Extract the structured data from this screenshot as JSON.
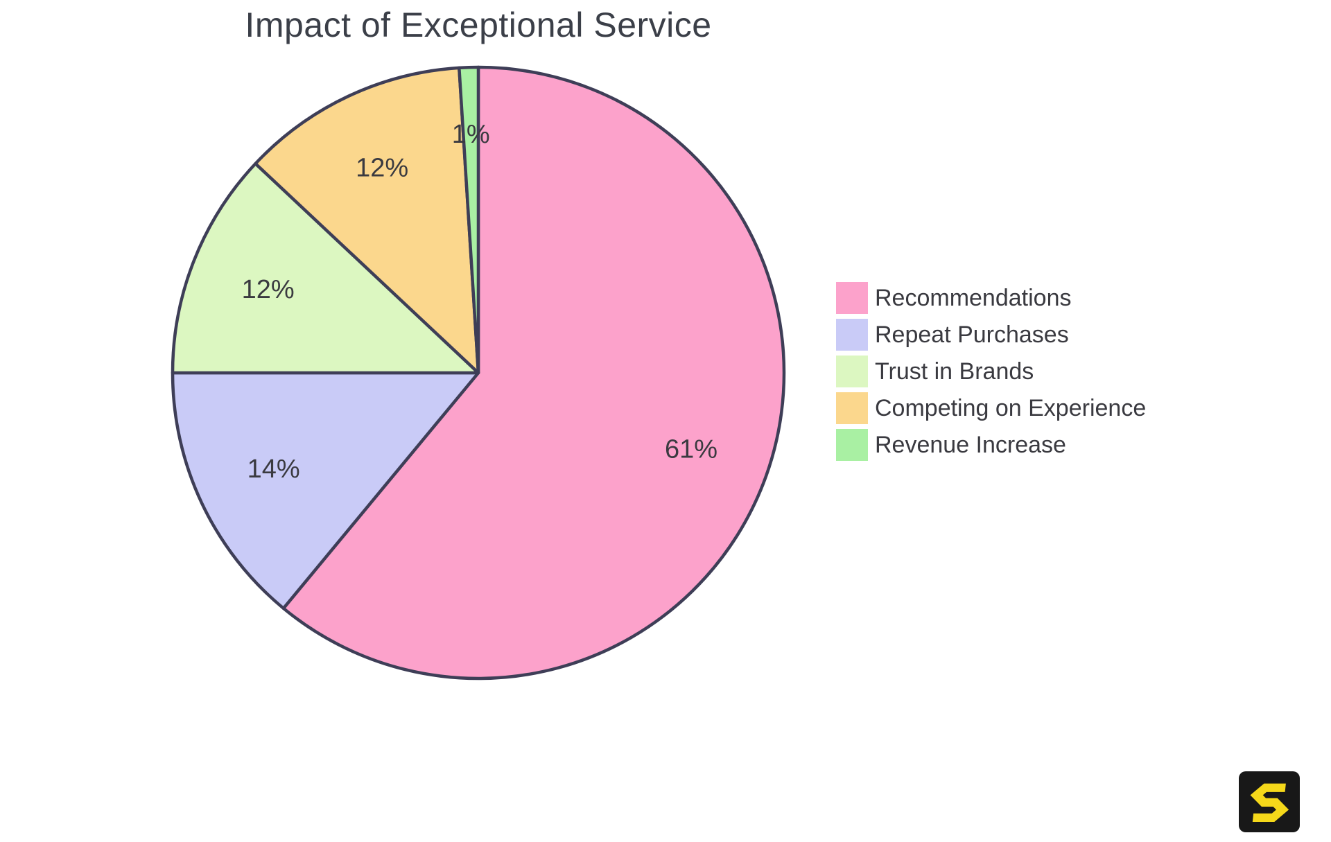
{
  "chart_data": {
    "type": "pie",
    "title": "Impact of Exceptional Service",
    "categories": [
      "Recommendations",
      "Repeat Purchases",
      "Trust in Brands",
      "Competing on Experience",
      "Revenue Increase"
    ],
    "values": [
      61,
      14,
      12,
      12,
      1
    ],
    "percent_labels": [
      "61%",
      "14%",
      "12%",
      "12%",
      "1%"
    ],
    "colors": [
      "#FCA2CB",
      "#C9CBF7",
      "#DCF7C1",
      "#FBD78D",
      "#A9F0A3"
    ],
    "slice_stroke_color": "#3E3E57",
    "title_color": "#3B3F48",
    "label_color": "#3A3A40",
    "legend_text_color": "#3A3A40",
    "start_angle": "12 o'clock, clockwise",
    "legend_position": "right",
    "grid": "off"
  },
  "branding": {
    "logo_letter": "S",
    "logo_bg": "#181818",
    "logo_color": "#F5D81A"
  }
}
